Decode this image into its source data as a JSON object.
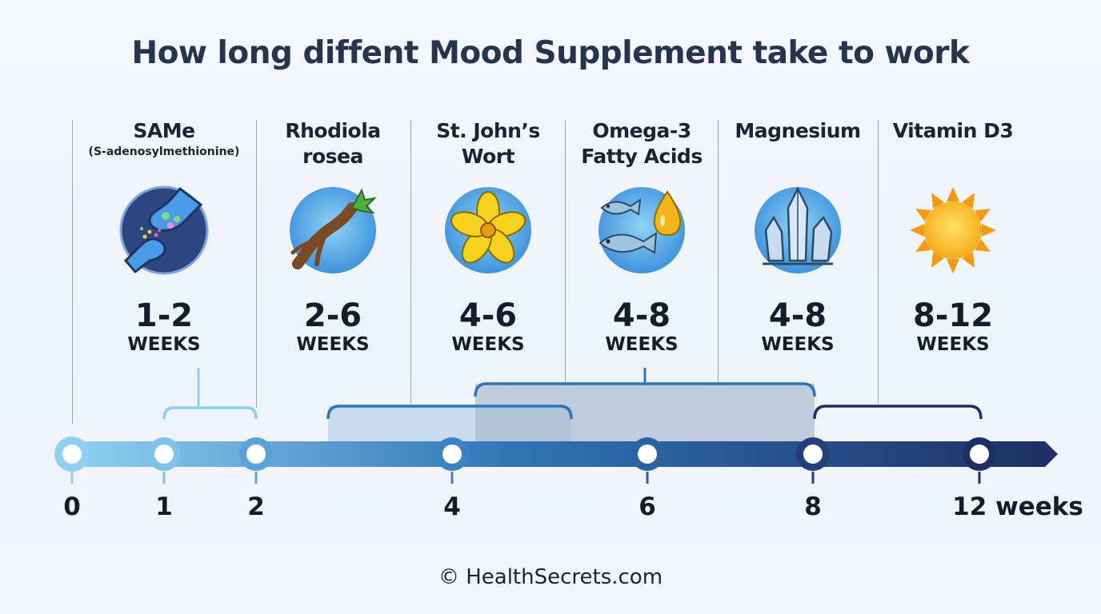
{
  "title": "How long diffent Mood Supplement take to work",
  "supplements": [
    {
      "name_line1": "SAMe",
      "name_line2": "",
      "subtitle": "(S-adenosylmethionine)",
      "icon": "neuron-synapse-icon",
      "range": "1-2",
      "unit": "WEEKS",
      "min_weeks": 1,
      "max_weeks": 2
    },
    {
      "name_line1": "Rhodiola",
      "name_line2": "rosea",
      "subtitle": "",
      "icon": "root-plant-icon",
      "range": "2-6",
      "unit": "WEEKS",
      "min_weeks": 2,
      "max_weeks": 6
    },
    {
      "name_line1": "St. John’s",
      "name_line2": "Wort",
      "subtitle": "",
      "icon": "yellow-flower-icon",
      "range": "4-6",
      "unit": "WEEKS",
      "min_weeks": 4,
      "max_weeks": 6
    },
    {
      "name_line1": "Omega-3",
      "name_line2": "Fatty Acids",
      "subtitle": "",
      "icon": "fish-oil-icon",
      "range": "4-8",
      "unit": "WEEKS",
      "min_weeks": 4,
      "max_weeks": 8
    },
    {
      "name_line1": "Magnesium",
      "name_line2": "",
      "subtitle": "",
      "icon": "crystal-icon",
      "range": "4-8",
      "unit": "WEEKS",
      "min_weeks": 4,
      "max_weeks": 8
    },
    {
      "name_line1": "Vitamin D3",
      "name_line2": "",
      "subtitle": "",
      "icon": "sun-icon",
      "range": "8-12",
      "unit": "WEEKS",
      "min_weeks": 8,
      "max_weeks": 12
    }
  ],
  "axis": {
    "ticks": [
      "0",
      "1",
      "2",
      "4",
      "6",
      "8",
      "12 weeks"
    ],
    "tick_values": [
      0,
      1,
      2,
      4,
      6,
      8,
      12
    ]
  },
  "colors": {
    "title": "#26354d",
    "timeline_start": "#8fd0f0",
    "timeline_mid": "#2f74b5",
    "timeline_end": "#1e2f63"
  },
  "footer": "© HealthSecrets.com"
}
